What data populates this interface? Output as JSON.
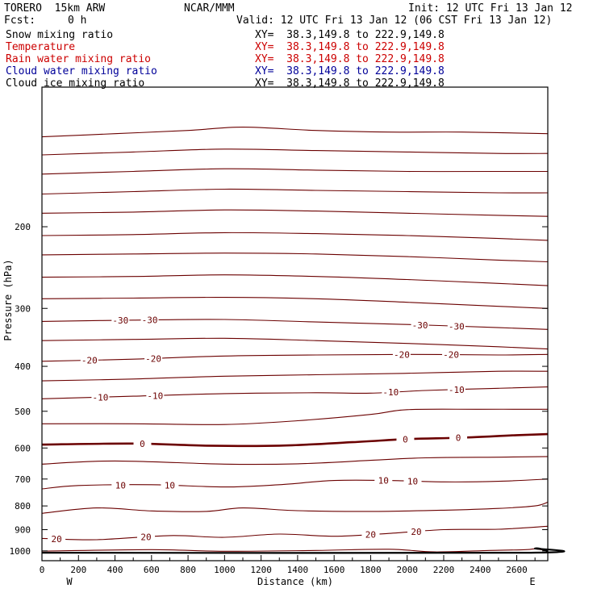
{
  "header": {
    "model": "TORERO  15km ARW",
    "center": "NCAR/MMM",
    "init": "Init: 12 UTC Fri 13 Jan 12",
    "fcst_label": "Fcst:",
    "fcst_value": "0 h",
    "valid": "Valid: 12 UTC Fri 13 Jan 12 (06 CST Fri 13 Jan 12)"
  },
  "fields": [
    {
      "name": "Snow mixing ratio",
      "color": "#000000",
      "xy": "XY=  38.3,149.8 to 222.9,149.8"
    },
    {
      "name": "Temperature",
      "color": "#cc0000",
      "xy": "XY=  38.3,149.8 to 222.9,149.8"
    },
    {
      "name": "Rain water mixing ratio",
      "color": "#cc0000",
      "xy": "XY=  38.3,149.8 to 222.9,149.8"
    },
    {
      "name": "Cloud water mixing ratio",
      "color": "#000099",
      "xy": "XY=  38.3,149.8 to 222.9,149.8"
    },
    {
      "name": "Cloud ice mixing ratio",
      "color": "#000000",
      "xy": "XY=  38.3,149.8 to 222.9,149.8"
    }
  ],
  "chart_data": {
    "type": "line",
    "subtype": "cross-section contour plot",
    "xlabel": "Distance (km)",
    "ylabel": "Pressure (hPa)",
    "xlim": [
      0,
      2770
    ],
    "ylim": [
      1050,
      100
    ],
    "y_scale": "log",
    "x_ticks": [
      0,
      200,
      400,
      600,
      800,
      1000,
      1200,
      1400,
      1600,
      1800,
      2000,
      2200,
      2400,
      2600
    ],
    "y_ticks": [
      200,
      300,
      400,
      500,
      600,
      700,
      800,
      900,
      1000
    ],
    "x_end_labels": {
      "left": "W",
      "right": "E"
    },
    "contour_color": "#6b0000",
    "contours": [
      {
        "x": [
          0,
          400,
          800,
          1100,
          1500,
          1900,
          2300,
          2770
        ],
        "p": [
          128,
          126,
          124,
          122,
          124,
          125,
          125,
          126
        ]
      },
      {
        "x": [
          0,
          500,
          1000,
          1500,
          2000,
          2500,
          2770
        ],
        "p": [
          140,
          138,
          136,
          137,
          138,
          139,
          139
        ]
      },
      {
        "x": [
          0,
          500,
          1000,
          1500,
          2000,
          2500,
          2770
        ],
        "p": [
          154,
          152,
          150,
          151,
          152,
          152,
          152
        ]
      },
      {
        "x": [
          0,
          500,
          1000,
          1500,
          2000,
          2500,
          2770
        ],
        "p": [
          170,
          168,
          166,
          167,
          168,
          169,
          169
        ]
      },
      {
        "x": [
          0,
          500,
          1000,
          1500,
          2000,
          2500,
          2770
        ],
        "p": [
          187,
          186,
          184,
          185,
          187,
          189,
          190
        ]
      },
      {
        "x": [
          0,
          500,
          1000,
          1500,
          2000,
          2500,
          2770
        ],
        "p": [
          209,
          208,
          206,
          207,
          209,
          212,
          214
        ]
      },
      {
        "x": [
          0,
          500,
          1000,
          1500,
          2000,
          2500,
          2770
        ],
        "p": [
          230,
          229,
          228,
          229,
          232,
          236,
          238
        ]
      },
      {
        "x": [
          0,
          500,
          1000,
          1500,
          2000,
          2500,
          2770
        ],
        "p": [
          257,
          256,
          254,
          256,
          260,
          265,
          268
        ]
      },
      {
        "x": [
          0,
          500,
          1000,
          1500,
          2000,
          2500,
          2770
        ],
        "p": [
          286,
          285,
          284,
          286,
          291,
          297,
          300
        ]
      },
      {
        "label": "-30",
        "x": [
          0,
          500,
          1000,
          1500,
          2000,
          2500,
          2770
        ],
        "p": [
          320,
          318,
          317,
          321,
          325,
          330,
          333
        ],
        "label_x": [
          430,
          590,
          2070,
          2270
        ]
      },
      {
        "x": [
          0,
          500,
          1000,
          1500,
          2000,
          2500,
          2770
        ],
        "p": [
          352,
          350,
          348,
          352,
          357,
          363,
          367
        ]
      },
      {
        "label": "-20",
        "x": [
          0,
          500,
          1000,
          1500,
          2000,
          2500,
          2770
        ],
        "p": [
          390,
          386,
          380,
          378,
          377,
          378,
          377
        ],
        "label_x": [
          260,
          610,
          1970,
          2240
        ]
      },
      {
        "x": [
          0,
          500,
          1000,
          1500,
          2000,
          2500,
          2770
        ],
        "p": [
          430,
          426,
          420,
          417,
          414,
          410,
          410
        ]
      },
      {
        "label": "-10",
        "x": [
          0,
          500,
          1000,
          1500,
          1800,
          2100,
          2500,
          2770
        ],
        "p": [
          470,
          464,
          458,
          456,
          457,
          451,
          446,
          443
        ],
        "label_x": [
          320,
          620,
          1910,
          2270
        ]
      },
      {
        "x": [
          0,
          500,
          1000,
          1400,
          1800,
          2000,
          2400,
          2770
        ],
        "p": [
          532,
          532,
          534,
          524,
          508,
          496,
          495,
          495
        ]
      },
      {
        "label": "0",
        "thick": true,
        "x": [
          0,
          500,
          900,
          1300,
          1700,
          2000,
          2300,
          2600,
          2770
        ],
        "p": [
          590,
          587,
          593,
          593,
          583,
          574,
          570,
          563,
          560
        ],
        "label_x": [
          550,
          1990,
          2280
        ]
      },
      {
        "x": [
          0,
          400,
          1000,
          1400,
          1800,
          2100,
          2500,
          2770
        ],
        "p": [
          650,
          640,
          650,
          649,
          638,
          630,
          628,
          626
        ]
      },
      {
        "label": "10",
        "x": [
          0,
          200,
          600,
          1000,
          1300,
          1600,
          1900,
          2200,
          2500,
          2770
        ],
        "p": [
          735,
          723,
          720,
          728,
          720,
          705,
          705,
          710,
          708,
          700
        ],
        "label_x": [
          430,
          700,
          1870,
          2030
        ]
      },
      {
        "x": [
          0,
          300,
          600,
          900,
          1100,
          1400,
          1800,
          2200,
          2500,
          2700,
          2770
        ],
        "p": [
          830,
          808,
          820,
          822,
          808,
          819,
          822,
          817,
          810,
          800,
          785
        ]
      },
      {
        "label": "20",
        "x": [
          0,
          300,
          700,
          1000,
          1300,
          1600,
          1900,
          2200,
          2500,
          2770
        ],
        "p": [
          940,
          946,
          927,
          935,
          920,
          930,
          917,
          900,
          898,
          885
        ],
        "label_x": [
          80,
          570,
          1800,
          2050
        ]
      },
      {
        "x": [
          0,
          600,
          1000,
          1500,
          1900,
          2150,
          2450,
          2650,
          2700,
          2770
        ],
        "p": [
          1001,
          994,
          1002,
          998,
          992,
          1005,
          998,
          994,
          990,
          1000
        ]
      }
    ],
    "terrain": {
      "x": [
        0,
        2650,
        2700,
        2740,
        2770
      ],
      "p": [
        1009,
        1009,
        988,
        992,
        1002
      ]
    }
  }
}
